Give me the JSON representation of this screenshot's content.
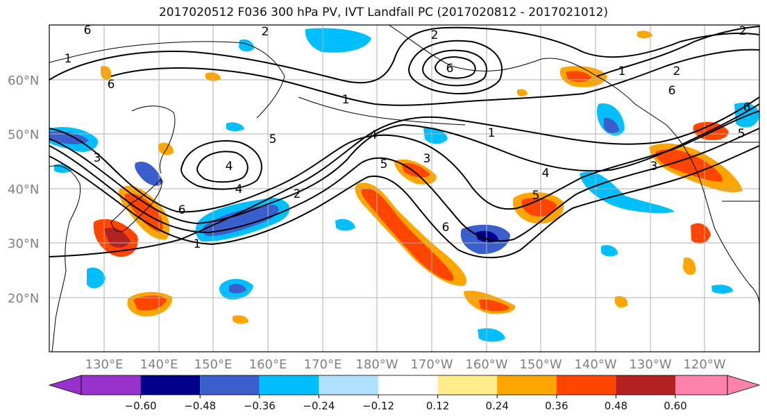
{
  "title": "2017020512 F036 300 hPa PV, IVT Landfall PC (2017020812 - 2017021012)",
  "lat_labels": [
    "60°N",
    "50°N",
    "40°N",
    "30°N",
    "20°N"
  ],
  "lon_labels": [
    "130°E",
    "140°E",
    "150°E",
    "160°E",
    "170°E",
    "180°W",
    "170°W",
    "160°W",
    "150°W",
    "140°W",
    "130°W",
    "120°W"
  ],
  "colorbar": {
    "ticks": [
      "−0.60",
      "−0.48",
      "−0.36",
      "−0.24",
      "−0.12",
      "0.12",
      "0.24",
      "0.36",
      "0.48",
      "0.60"
    ],
    "colors": [
      "#9932cc",
      "#00008b",
      "#3a5fcd",
      "#00bfff",
      "#b0e2ff",
      "#ffffff",
      "#ffec8b",
      "#ffa500",
      "#ff4500",
      "#b22222",
      "#ff82ab"
    ]
  },
  "contour_labels": [
    "6",
    "2",
    "6",
    "1",
    "4",
    "5",
    "3",
    "5",
    "2",
    "1",
    "4",
    "6",
    "3",
    "1",
    "6",
    "4",
    "2",
    "5",
    "6",
    "1",
    "4",
    "2",
    "6",
    "1",
    "3",
    "2",
    "5",
    "6"
  ],
  "colors": {
    "axis_label": "#808080",
    "grid": "#b0b0b0",
    "contour": "#000000"
  }
}
